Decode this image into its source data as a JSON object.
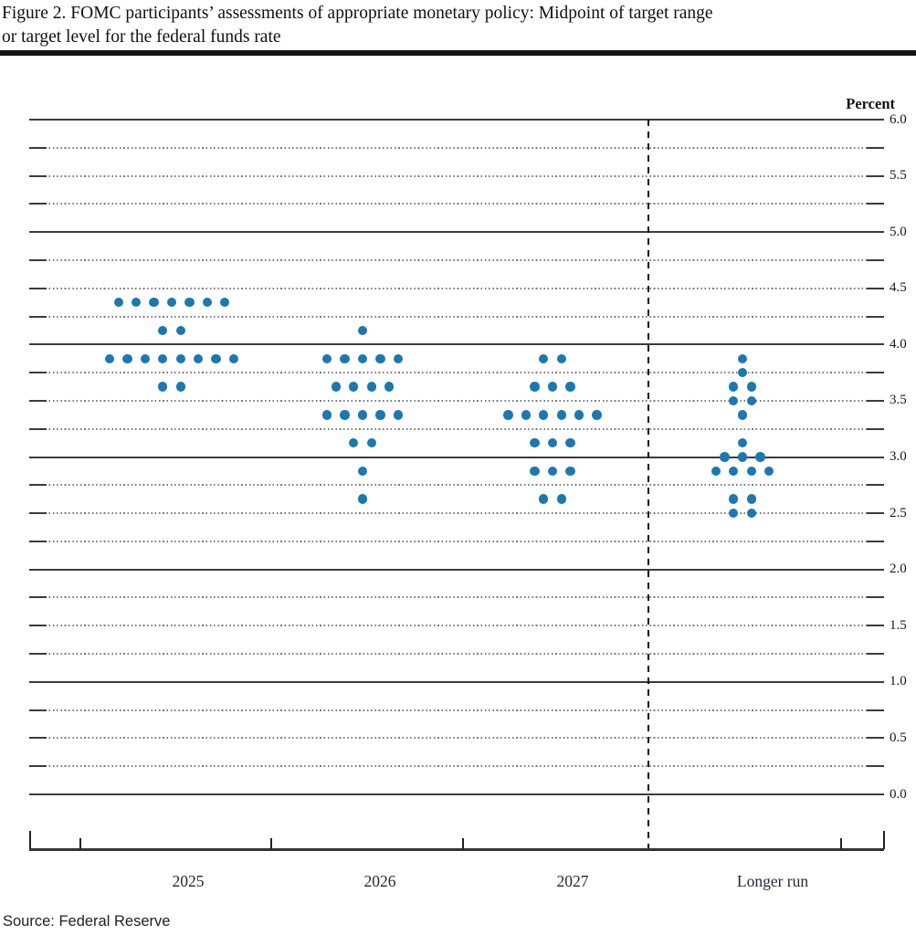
{
  "title": {
    "line1": "Figure 2.  FOMC participants’ assessments of appropriate monetary policy:  Midpoint of target range",
    "line2": "or target level for the federal funds rate"
  },
  "source": "Source: Federal Reserve",
  "chart_data": {
    "type": "scatter",
    "title": "FOMC participants’ assessments of appropriate monetary policy: Midpoint of target range or target level for the federal funds rate",
    "ylabel": "Percent",
    "ylim": [
      0.0,
      6.0
    ],
    "y_label_step": 0.5,
    "y_grid_step": 0.25,
    "grid": "solid lines at integers, dotted lines at quarters",
    "legend_position": "none",
    "dot_color": "#1b78b0",
    "y_tick_labels": [
      "6.0",
      "5.5",
      "5.0",
      "4.5",
      "4.0",
      "3.5",
      "3.0",
      "2.5",
      "2.0",
      "1.5",
      "1.0",
      "0.5",
      "0.0"
    ],
    "categories": [
      "2025",
      "2026",
      "2027",
      "Longer run"
    ],
    "series": [
      {
        "name": "2025",
        "dots": [
          {
            "rate": 4.375,
            "count": 7
          },
          {
            "rate": 4.125,
            "count": 2
          },
          {
            "rate": 3.875,
            "count": 8
          },
          {
            "rate": 3.625,
            "count": 2
          }
        ]
      },
      {
        "name": "2026",
        "dots": [
          {
            "rate": 4.125,
            "count": 1
          },
          {
            "rate": 3.875,
            "count": 5
          },
          {
            "rate": 3.625,
            "count": 4
          },
          {
            "rate": 3.375,
            "count": 5
          },
          {
            "rate": 3.125,
            "count": 2
          },
          {
            "rate": 2.875,
            "count": 1
          },
          {
            "rate": 2.625,
            "count": 1
          }
        ]
      },
      {
        "name": "2027",
        "dots": [
          {
            "rate": 3.875,
            "count": 2
          },
          {
            "rate": 3.625,
            "count": 3
          },
          {
            "rate": 3.375,
            "count": 6
          },
          {
            "rate": 3.125,
            "count": 3
          },
          {
            "rate": 2.875,
            "count": 3
          },
          {
            "rate": 2.625,
            "count": 2
          }
        ]
      },
      {
        "name": "Longer run",
        "dots": [
          {
            "rate": 3.875,
            "count": 1
          },
          {
            "rate": 3.75,
            "count": 1
          },
          {
            "rate": 3.625,
            "count": 2
          },
          {
            "rate": 3.5,
            "count": 2
          },
          {
            "rate": 3.375,
            "count": 1
          },
          {
            "rate": 3.125,
            "count": 1
          },
          {
            "rate": 3.0,
            "count": 3
          },
          {
            "rate": 2.875,
            "count": 4
          },
          {
            "rate": 2.625,
            "count": 2
          },
          {
            "rate": 2.5,
            "count": 2
          }
        ]
      }
    ]
  }
}
